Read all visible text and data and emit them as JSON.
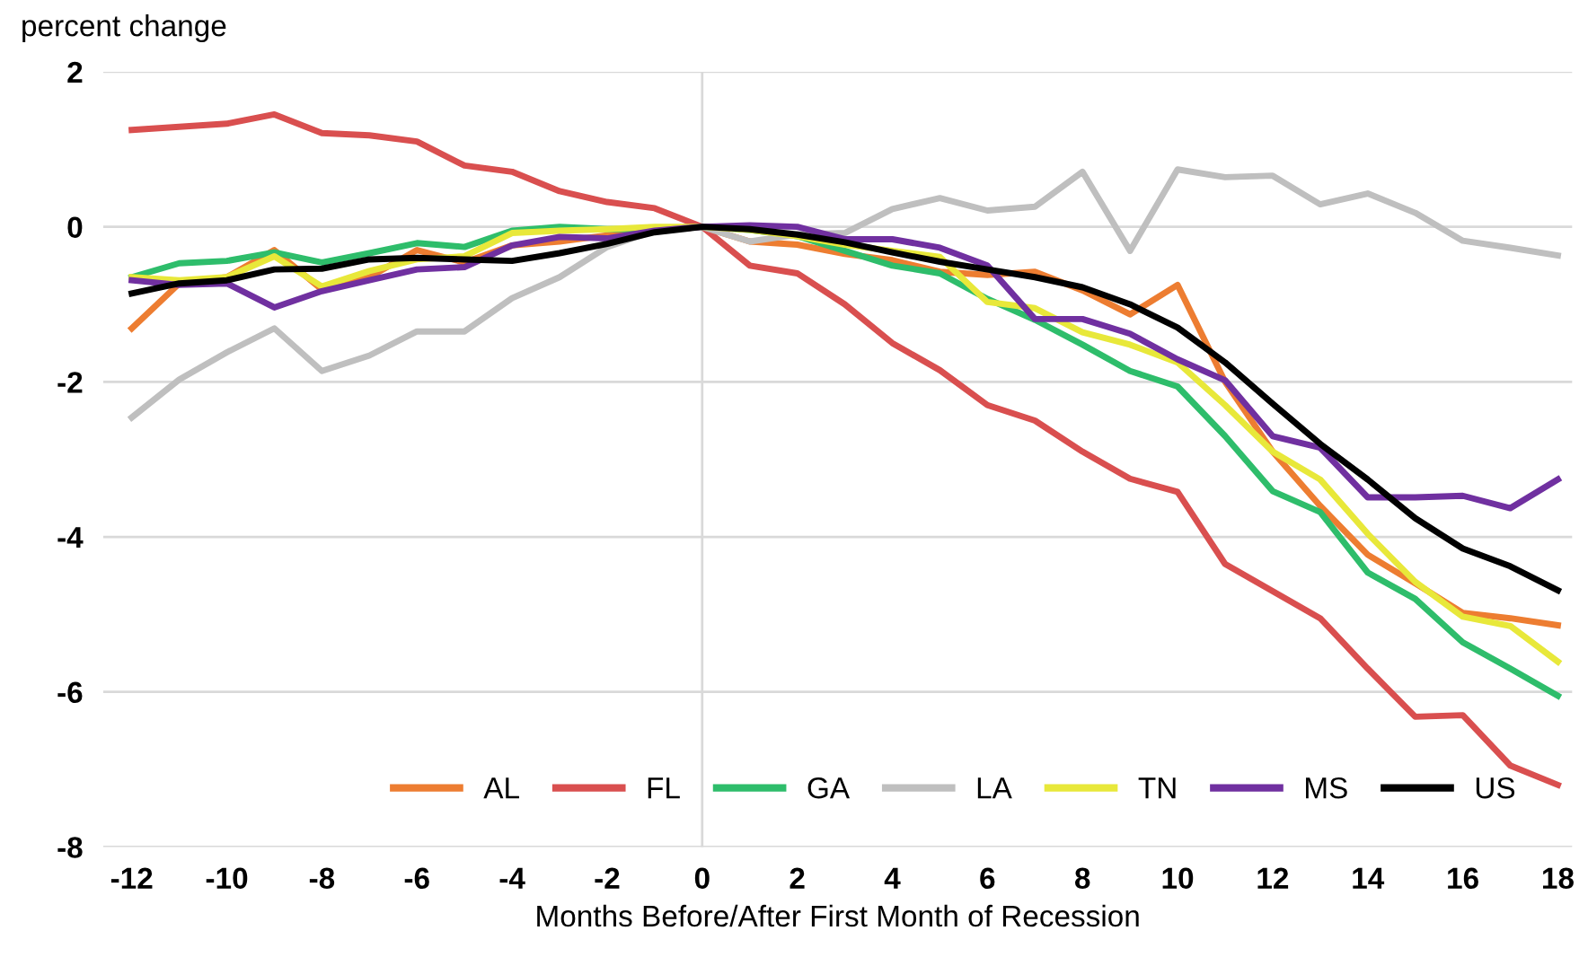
{
  "chart_data": {
    "type": "line",
    "ylabel": "percent change",
    "xlabel": "Months Before/After First Month of Recession",
    "x": [
      -12,
      -11,
      -10,
      -9,
      -8,
      -7,
      -6,
      -5,
      -4,
      -3,
      -2,
      -1,
      0,
      1,
      2,
      3,
      4,
      5,
      6,
      7,
      8,
      9,
      10,
      11,
      12,
      13,
      14,
      15,
      16,
      17,
      18
    ],
    "series": [
      {
        "name": "AL",
        "color": "#ed7d31",
        "values": [
          -1.31,
          -0.73,
          -0.65,
          -0.3,
          -0.81,
          -0.65,
          -0.3,
          -0.46,
          -0.24,
          -0.19,
          -0.11,
          -0.05,
          0,
          -0.19,
          -0.23,
          -0.35,
          -0.43,
          -0.58,
          -0.62,
          -0.58,
          -0.82,
          -1.13,
          -0.75,
          -2.0,
          -2.9,
          -3.6,
          -4.23,
          -4.6,
          -4.98,
          -5.05,
          -5.14
        ]
      },
      {
        "name": "FL",
        "color": "#d94f4f",
        "values": [
          1.25,
          1.29,
          1.33,
          1.45,
          1.21,
          1.18,
          1.1,
          0.79,
          0.71,
          0.46,
          0.32,
          0.24,
          0,
          -0.5,
          -0.6,
          -1.0,
          -1.5,
          -1.85,
          -2.3,
          -2.5,
          -2.9,
          -3.25,
          -3.42,
          -4.35,
          -4.7,
          -5.05,
          -5.7,
          -6.32,
          -6.3,
          -6.95,
          -7.2
        ]
      },
      {
        "name": "GA",
        "color": "#2ebd6b",
        "values": [
          -0.65,
          -0.47,
          -0.44,
          -0.33,
          -0.46,
          -0.34,
          -0.21,
          -0.26,
          -0.05,
          0.0,
          -0.03,
          -0.03,
          0,
          -0.04,
          -0.12,
          -0.31,
          -0.5,
          -0.6,
          -0.93,
          -1.2,
          -1.52,
          -1.86,
          -2.06,
          -2.7,
          -3.41,
          -3.68,
          -4.46,
          -4.8,
          -5.36,
          -5.7,
          -6.05
        ]
      },
      {
        "name": "LA",
        "color": "#bfbfbf",
        "values": [
          -2.46,
          -1.97,
          -1.62,
          -1.31,
          -1.86,
          -1.66,
          -1.35,
          -1.35,
          -0.92,
          -0.65,
          -0.26,
          -0.05,
          0,
          -0.19,
          -0.1,
          -0.08,
          0.23,
          0.37,
          0.21,
          0.26,
          0.71,
          -0.31,
          0.74,
          0.64,
          0.66,
          0.29,
          0.43,
          0.18,
          -0.18,
          -0.27,
          -0.37
        ]
      },
      {
        "name": "TN",
        "color": "#e8e83a",
        "values": [
          -0.65,
          -0.69,
          -0.65,
          -0.38,
          -0.77,
          -0.57,
          -0.42,
          -0.38,
          -0.08,
          -0.05,
          -0.03,
          0.0,
          0,
          -0.04,
          -0.12,
          -0.23,
          -0.31,
          -0.39,
          -0.97,
          -1.05,
          -1.36,
          -1.52,
          -1.75,
          -2.3,
          -2.9,
          -3.26,
          -3.96,
          -4.58,
          -5.03,
          -5.15,
          -5.61
        ]
      },
      {
        "name": "MS",
        "color": "#7030a0",
        "values": [
          -0.69,
          -0.75,
          -0.73,
          -1.04,
          -0.83,
          -0.69,
          -0.55,
          -0.52,
          -0.24,
          -0.13,
          -0.15,
          -0.05,
          0,
          0.02,
          0,
          -0.16,
          -0.16,
          -0.27,
          -0.5,
          -1.19,
          -1.19,
          -1.38,
          -1.71,
          -1.98,
          -2.7,
          -2.85,
          -3.49,
          -3.49,
          -3.47,
          -3.63,
          -3.26
        ]
      },
      {
        "name": "US",
        "color": "#000000",
        "values": [
          -0.86,
          -0.73,
          -0.69,
          -0.55,
          -0.54,
          -0.42,
          -0.4,
          -0.42,
          -0.44,
          -0.34,
          -0.22,
          -0.07,
          0,
          -0.03,
          -0.1,
          -0.2,
          -0.33,
          -0.45,
          -0.55,
          -0.65,
          -0.78,
          -1.0,
          -1.3,
          -1.75,
          -2.28,
          -2.8,
          -3.26,
          -3.76,
          -4.15,
          -4.38,
          -4.69
        ]
      }
    ],
    "xlim": [
      -12.6,
      18.3
    ],
    "xticks": [
      -12,
      -10,
      -8,
      -6,
      -4,
      -2,
      0,
      2,
      4,
      6,
      8,
      10,
      12,
      14,
      16,
      18
    ],
    "ylim": [
      -8,
      2
    ],
    "yticks": [
      -8,
      -6,
      -4,
      -2,
      0,
      2
    ],
    "ref_lines": [
      {
        "axis": "x",
        "value": 0,
        "color": "#d9d9d9"
      }
    ],
    "grid": "y",
    "legend": "bottom right",
    "line_style": "solid",
    "marker": "none"
  }
}
